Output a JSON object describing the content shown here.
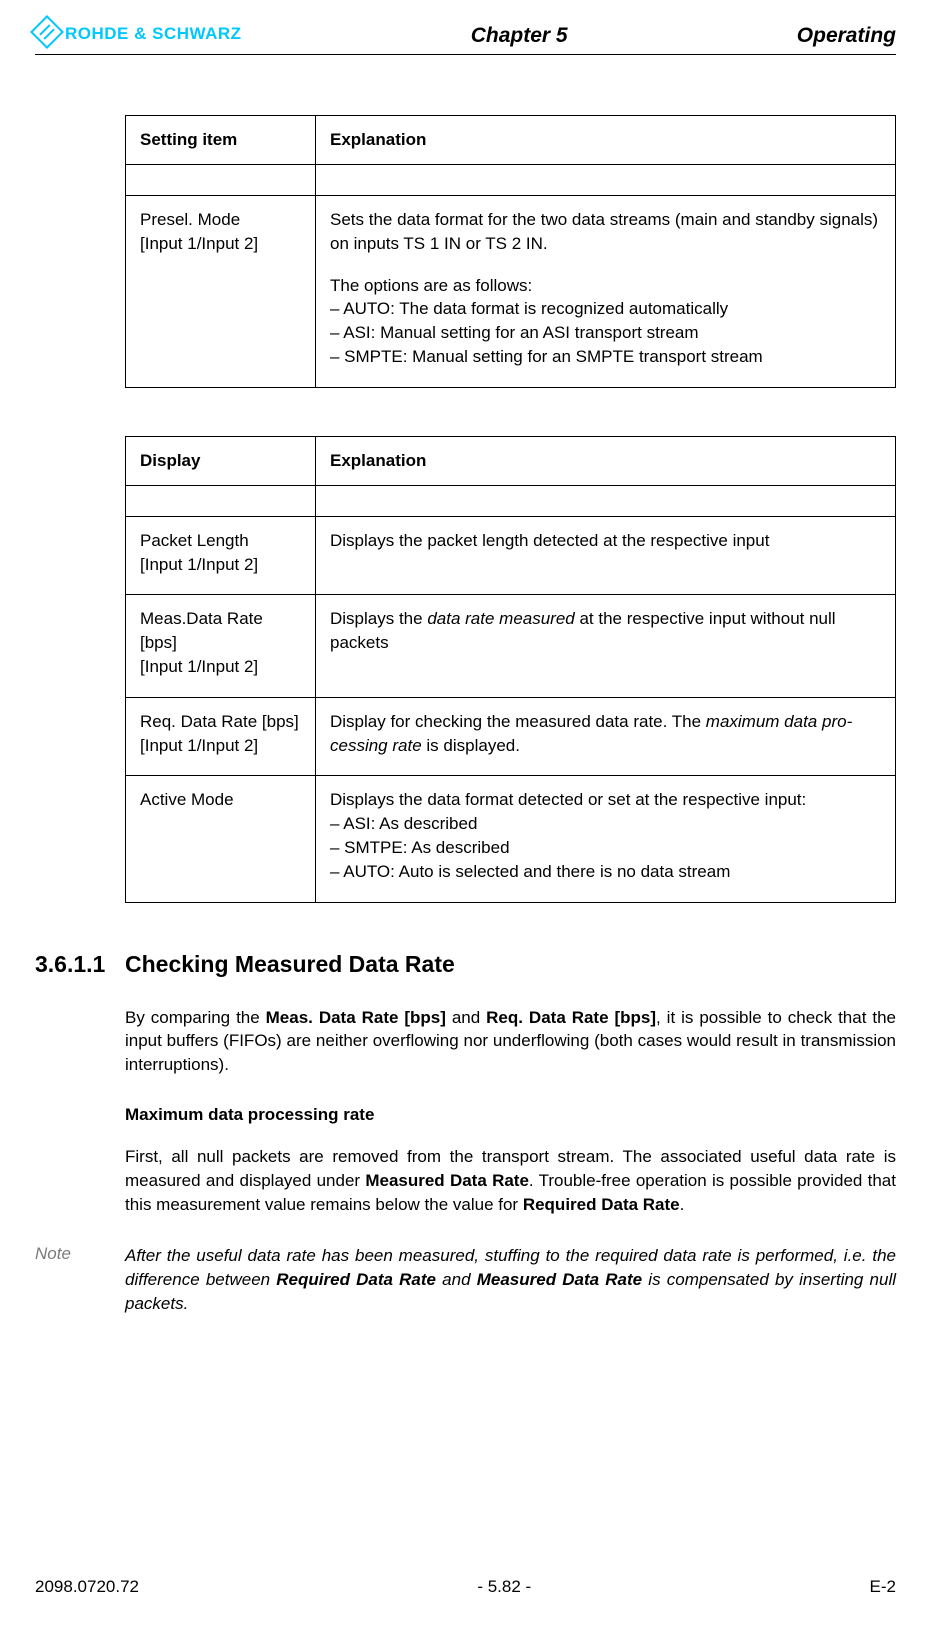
{
  "header": {
    "logo_text": "ROHDE & SCHWARZ",
    "chapter": "Chapter 5",
    "section": "Operating"
  },
  "table1": {
    "head_col1": "Setting item",
    "head_col2": "Explanation",
    "row1_col1_l1": "Presel. Mode",
    "row1_col1_l2": "[Input 1/Input 2]",
    "row1_col2_p1": "Sets the data format for the two data streams (main and standby sig­nals) on inputs TS 1 IN or TS 2 IN.",
    "row1_col2_p2": "The options are as follows:",
    "row1_col2_b1": "–  AUTO: The data format is recognized automatically",
    "row1_col2_b2": "–  ASI: Manual setting for an ASI transport stream",
    "row1_col2_b3": "–  SMPTE: Manual setting for an SMPTE transport stream"
  },
  "table2": {
    "head_col1": "Display",
    "head_col2": "Explanation",
    "r1_c1_l1": "Packet Length",
    "r1_c1_l2": "[Input 1/Input 2]",
    "r1_c2": "Displays the packet length detected at the respective input",
    "r2_c1_l1": "Meas.Data Rate [bps]",
    "r2_c1_l2": "[Input 1/Input 2]",
    "r2_c2_pre": "Displays the ",
    "r2_c2_it": "data rate measured",
    "r2_c2_post": " at the respective input without null packets",
    "r3_c1_l1": "Req. Data Rate [bps]",
    "r3_c1_l2": "[Input 1/Input 2]",
    "r3_c2_pre": "Display for checking the measured data rate. The ",
    "r3_c2_it": "maximum data pro­cessing rate",
    "r3_c2_post": " is displayed.",
    "r4_c1": "Active Mode",
    "r4_c2_l1": "Displays the data format detected or set at the respective input:",
    "r4_c2_b1": "–  ASI: As described",
    "r4_c2_b2": "–  SMTPE: As described",
    "r4_c2_b3": "–  AUTO: Auto is selected and there is no data stream"
  },
  "section": {
    "num": "3.6.1.1",
    "title": "Checking Measured Data Rate",
    "p1_pre": "By comparing the ",
    "p1_b1": "Meas. Data Rate [bps]",
    "p1_mid": " and ",
    "p1_b2": "Req. Data Rate [bps]",
    "p1_post": ", it is possible to check that the input buffers (FIFOs) are neither overflowing nor underflowing (both cases would result in transmission interruptions).",
    "subhead": "Maximum data processing rate",
    "p2_pre": "First, all null packets are removed from the transport stream. The associated useful data rate is measured and displayed under ",
    "p2_b1": "Measured Data Rate",
    "p2_mid": ". Trouble-free operation is pos­sible provided that this measurement value remains below the value for ",
    "p2_b2": "Required Data Rate",
    "p2_post": ".",
    "note_label": "Note",
    "note_pre": "After the useful data rate has been measured, stuffing to the required data rate is per­formed, i.e. the difference between ",
    "note_b1": "Required Data Rate",
    "note_mid": " and ",
    "note_b2": "Measured Data Rate",
    "note_post": " is com­pensated by inserting null packets."
  },
  "footer": {
    "left": "2098.0720.72",
    "center": "- 5.82 -",
    "right": "E-2"
  }
}
